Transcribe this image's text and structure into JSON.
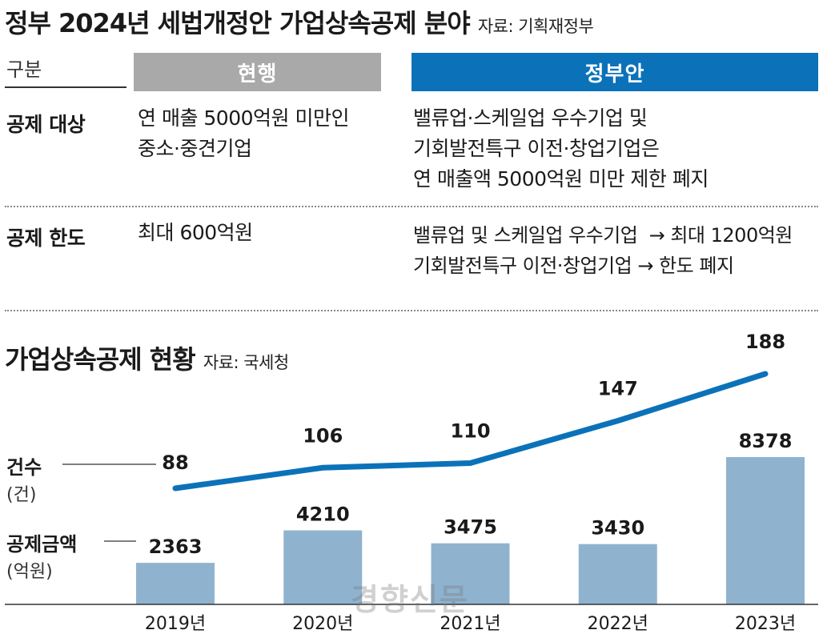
{
  "table": {
    "title": "정부 2024년 세법개정안 가업상속공제 분야",
    "source": "자료: 기획재정부",
    "header": {
      "category": "구분",
      "current": "현행",
      "proposal": "정부안"
    },
    "rows": [
      {
        "label": "공제 대상",
        "current": [
          "연 매출 5000억원 미만인",
          "중소·중견기업"
        ],
        "proposal": [
          "밸류업·스케일업 우수기업 및",
          "기회발전특구 이전·창업기업은",
          "연 매출액 5000억원 미만 제한 폐지"
        ]
      },
      {
        "label": "공제 한도",
        "current": [
          "최대 600억원"
        ],
        "proposal": [
          "밸류업 및 스케일업 우수기업  → 최대 1200억원",
          "기회발전특구 이전·창업기업 → 한도 폐지"
        ]
      }
    ]
  },
  "chart_data": {
    "type": "bar",
    "title": "가업상속공제 현황",
    "source": "자료: 국세청",
    "categories": [
      "2019년",
      "2020년",
      "2021년",
      "2022년",
      "2023년"
    ],
    "series": [
      {
        "name": "건수",
        "unit": "(건)",
        "type": "line",
        "values": [
          88,
          106,
          110,
          147,
          188
        ]
      },
      {
        "name": "공제금액",
        "unit": "(억원)",
        "type": "bar",
        "values": [
          2363,
          4210,
          3475,
          3430,
          8378
        ]
      }
    ],
    "colors": {
      "bar": "#8fb3cf",
      "line": "#0b72b9"
    },
    "grid": false,
    "legend": "left"
  },
  "watermark": "경향신문"
}
